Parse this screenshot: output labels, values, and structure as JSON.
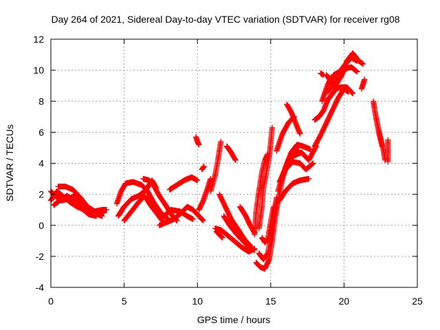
{
  "chart_data": {
    "type": "scatter",
    "title": "Day 264 of 2021, Sidereal Day-to-day VTEC variation (SDTVAR) for receiver rg08",
    "xlabel": "GPS time / hours",
    "ylabel": "SDTVAR / TECUs",
    "xlim": [
      0,
      25
    ],
    "ylim": [
      -4,
      12
    ],
    "xticks": [
      "0",
      "5",
      "10",
      "15",
      "20",
      "25"
    ],
    "yticks": [
      "-4",
      "-2",
      "0",
      "2",
      "4",
      "6",
      "8",
      "10",
      "12"
    ],
    "grid": true,
    "marker": "+",
    "color": "#ff0000",
    "tracks": [
      [
        [
          0.0,
          2.2
        ],
        [
          0.3,
          1.9
        ],
        [
          0.7,
          1.6
        ],
        [
          1.2,
          1.7
        ],
        [
          1.6,
          1.9
        ],
        [
          2.0,
          1.4
        ],
        [
          2.5,
          0.9
        ],
        [
          3.0,
          0.7
        ],
        [
          3.6,
          0.8
        ]
      ],
      [
        [
          0.0,
          1.6
        ],
        [
          0.4,
          2.2
        ],
        [
          0.8,
          1.9
        ],
        [
          1.3,
          1.5
        ],
        [
          1.8,
          1.2
        ],
        [
          2.3,
          1.0
        ],
        [
          2.9,
          0.8
        ],
        [
          3.5,
          0.6
        ]
      ],
      [
        [
          0.5,
          2.5
        ],
        [
          1.0,
          2.5
        ],
        [
          1.5,
          2.3
        ],
        [
          2.0,
          1.8
        ],
        [
          2.5,
          1.2
        ],
        [
          3.0,
          0.9
        ],
        [
          3.5,
          1.0
        ],
        [
          3.8,
          1.0
        ]
      ],
      [
        [
          0.2,
          1.3
        ],
        [
          0.6,
          1.6
        ],
        [
          1.1,
          1.9
        ],
        [
          1.6,
          1.6
        ],
        [
          2.1,
          1.1
        ],
        [
          2.6,
          0.7
        ],
        [
          3.1,
          0.6
        ]
      ],
      [
        [
          4.5,
          1.4
        ],
        [
          4.8,
          2.2
        ],
        [
          5.1,
          2.7
        ],
        [
          5.6,
          2.8
        ],
        [
          6.2,
          2.6
        ],
        [
          6.6,
          2.2
        ],
        [
          7.0,
          1.5
        ],
        [
          7.5,
          0.8
        ],
        [
          8.0,
          0.4
        ]
      ],
      [
        [
          4.6,
          0.6
        ],
        [
          5.0,
          1.2
        ],
        [
          5.5,
          1.7
        ],
        [
          6.0,
          1.9
        ],
        [
          6.5,
          2.3
        ],
        [
          6.9,
          2.9
        ],
        [
          7.2,
          2.4
        ]
      ],
      [
        [
          5.0,
          0.3
        ],
        [
          5.5,
          0.9
        ],
        [
          6.0,
          1.5
        ],
        [
          6.4,
          1.9
        ],
        [
          6.8,
          1.3
        ],
        [
          7.2,
          0.8
        ],
        [
          7.6,
          0.3
        ]
      ],
      [
        [
          6.3,
          3.0
        ],
        [
          6.7,
          2.9
        ],
        [
          7.0,
          2.6
        ],
        [
          7.4,
          1.9
        ],
        [
          7.9,
          1.2
        ],
        [
          8.3,
          0.6
        ],
        [
          8.6,
          0.3
        ]
      ],
      [
        [
          7.4,
          0.0
        ],
        [
          7.9,
          0.2
        ],
        [
          8.4,
          0.4
        ],
        [
          8.9,
          0.8
        ],
        [
          9.3,
          1.2
        ],
        [
          9.7,
          1.0
        ],
        [
          10.1,
          0.6
        ],
        [
          10.4,
          0.3
        ]
      ],
      [
        [
          7.6,
          0.5
        ],
        [
          8.2,
          1.0
        ],
        [
          8.8,
          0.9
        ],
        [
          9.3,
          0.6
        ],
        [
          9.7,
          0.4
        ]
      ],
      [
        [
          8.1,
          2.3
        ],
        [
          8.6,
          2.6
        ],
        [
          9.1,
          2.9
        ],
        [
          9.6,
          3.1
        ],
        [
          10.0,
          2.9
        ]
      ],
      [
        [
          9.9,
          5.7
        ],
        [
          10.0,
          5.4
        ],
        [
          10.1,
          5.2
        ]
      ],
      [
        [
          10.3,
          3.6
        ],
        [
          10.45,
          3.8
        ]
      ],
      [
        [
          10.1,
          1.0
        ],
        [
          10.4,
          1.6
        ],
        [
          10.7,
          2.4
        ],
        [
          10.9,
          3.0
        ]
      ],
      [
        [
          10.9,
          2.2
        ],
        [
          11.2,
          3.2
        ],
        [
          11.4,
          4.2
        ],
        [
          11.6,
          5.4
        ]
      ],
      [
        [
          12.0,
          5.1
        ],
        [
          12.3,
          4.7
        ],
        [
          12.6,
          4.2
        ]
      ],
      [
        [
          11.2,
          -0.2
        ],
        [
          11.6,
          -0.3
        ],
        [
          12.0,
          -0.6
        ],
        [
          12.5,
          -1.0
        ],
        [
          13.0,
          -1.4
        ],
        [
          13.5,
          -1.7
        ],
        [
          13.9,
          -1.5
        ]
      ],
      [
        [
          11.5,
          2.0
        ],
        [
          11.9,
          1.2
        ],
        [
          12.3,
          0.4
        ],
        [
          12.8,
          -0.3
        ],
        [
          13.2,
          -0.9
        ],
        [
          13.6,
          -1.3
        ]
      ],
      [
        [
          11.8,
          0.6
        ],
        [
          12.2,
          0.0
        ],
        [
          12.7,
          -0.6
        ],
        [
          13.1,
          -1.0
        ],
        [
          13.5,
          -1.4
        ],
        [
          13.9,
          -1.6
        ]
      ],
      [
        [
          11.3,
          -0.4
        ],
        [
          11.5,
          -0.6
        ],
        [
          11.7,
          -0.8
        ]
      ],
      [
        [
          12.9,
          1.2
        ],
        [
          13.3,
          0.6
        ],
        [
          13.6,
          0.0
        ],
        [
          13.9,
          -0.5
        ]
      ],
      [
        [
          13.9,
          -0.6
        ],
        [
          14.0,
          0.8
        ],
        [
          14.2,
          2.2
        ],
        [
          14.4,
          3.4
        ],
        [
          14.6,
          4.2
        ],
        [
          14.8,
          4.6
        ]
      ],
      [
        [
          14.2,
          -0.2
        ],
        [
          14.4,
          1.2
        ],
        [
          14.5,
          2.4
        ],
        [
          14.7,
          3.4
        ],
        [
          14.9,
          4.4
        ],
        [
          15.0,
          5.3
        ],
        [
          15.1,
          6.3
        ]
      ],
      [
        [
          14.0,
          -2.4
        ],
        [
          14.3,
          -2.7
        ],
        [
          14.6,
          -2.8
        ],
        [
          14.9,
          -2.2
        ],
        [
          15.1,
          -1.0
        ],
        [
          15.3,
          0.4
        ],
        [
          15.5,
          1.6
        ]
      ],
      [
        [
          14.2,
          -1.8
        ],
        [
          14.5,
          -2.2
        ],
        [
          14.8,
          -1.8
        ],
        [
          15.0,
          -0.8
        ],
        [
          15.2,
          0.6
        ],
        [
          15.4,
          1.8
        ]
      ],
      [
        [
          14.4,
          -0.8
        ],
        [
          14.6,
          -1.1
        ],
        [
          14.8,
          -0.9
        ],
        [
          15.0,
          0.2
        ],
        [
          15.2,
          1.2
        ]
      ],
      [
        [
          15.3,
          0.8
        ],
        [
          15.6,
          2.0
        ],
        [
          15.8,
          3.0
        ],
        [
          16.2,
          4.2
        ],
        [
          16.6,
          4.9
        ],
        [
          16.9,
          4.8
        ]
      ],
      [
        [
          15.5,
          2.2
        ],
        [
          15.8,
          3.2
        ],
        [
          16.2,
          4.2
        ],
        [
          16.6,
          4.5
        ],
        [
          17.1,
          4.7
        ],
        [
          17.6,
          4.2
        ],
        [
          18.1,
          5.1
        ]
      ],
      [
        [
          15.6,
          1.6
        ],
        [
          16.0,
          2.2
        ],
        [
          16.5,
          2.7
        ],
        [
          17.0,
          2.9
        ],
        [
          17.6,
          3.0
        ]
      ],
      [
        [
          15.6,
          2.8
        ],
        [
          16.0,
          3.6
        ],
        [
          16.5,
          4.1
        ],
        [
          17.0,
          4.0
        ],
        [
          17.4,
          3.6
        ],
        [
          17.9,
          4.0
        ]
      ],
      [
        [
          15.4,
          4.8
        ],
        [
          15.8,
          5.9
        ],
        [
          16.2,
          6.6
        ],
        [
          16.6,
          7.0
        ]
      ],
      [
        [
          16.0,
          3.7
        ],
        [
          16.4,
          4.7
        ],
        [
          16.8,
          5.2
        ],
        [
          17.2,
          5.1
        ],
        [
          17.7,
          4.9
        ]
      ],
      [
        [
          16.1,
          7.8
        ],
        [
          16.4,
          7.3
        ],
        [
          16.7,
          6.6
        ],
        [
          17.0,
          5.9
        ]
      ],
      [
        [
          18.0,
          6.8
        ],
        [
          18.3,
          7.0
        ],
        [
          18.6,
          7.4
        ],
        [
          18.9,
          8.1
        ],
        [
          19.3,
          8.6
        ],
        [
          19.6,
          8.9
        ],
        [
          19.9,
          8.8
        ]
      ],
      [
        [
          18.0,
          5.1
        ],
        [
          18.4,
          5.8
        ],
        [
          18.8,
          6.6
        ],
        [
          19.2,
          7.4
        ],
        [
          19.6,
          8.2
        ],
        [
          20.0,
          8.8
        ],
        [
          20.3,
          8.6
        ]
      ],
      [
        [
          18.5,
          8.0
        ],
        [
          18.9,
          9.1
        ],
        [
          19.3,
          9.7
        ],
        [
          19.7,
          9.9
        ],
        [
          20.1,
          10.4
        ],
        [
          20.5,
          10.8
        ],
        [
          20.9,
          10.6
        ]
      ],
      [
        [
          18.9,
          8.6
        ],
        [
          19.3,
          9.1
        ],
        [
          19.7,
          9.5
        ],
        [
          20.1,
          10.1
        ],
        [
          20.5,
          10.2
        ],
        [
          20.9,
          9.9
        ]
      ],
      [
        [
          19.4,
          9.0
        ],
        [
          19.8,
          9.6
        ],
        [
          20.2,
          10.6
        ],
        [
          20.6,
          11.1
        ],
        [
          21.0,
          10.6
        ],
        [
          21.3,
          10.4
        ]
      ],
      [
        [
          19.0,
          9.3
        ],
        [
          19.4,
          8.8
        ],
        [
          19.8,
          8.9
        ],
        [
          20.2,
          8.9
        ],
        [
          20.6,
          8.5
        ]
      ],
      [
        [
          18.8,
          9.7
        ],
        [
          19.1,
          9.3
        ],
        [
          19.4,
          9.6
        ]
      ],
      [
        [
          18.4,
          9.8
        ],
        [
          18.6,
          9.7
        ]
      ],
      [
        [
          21.2,
          8.8
        ],
        [
          21.4,
          9.4
        ]
      ],
      [
        [
          22.0,
          8.0
        ],
        [
          22.1,
          7.4
        ],
        [
          22.3,
          6.4
        ],
        [
          22.5,
          5.6
        ],
        [
          22.7,
          4.8
        ],
        [
          22.8,
          4.2
        ]
      ],
      [
        [
          22.2,
          6.9
        ],
        [
          22.4,
          5.9
        ],
        [
          22.6,
          5.1
        ]
      ],
      [
        [
          23.0,
          5.5
        ],
        [
          23.0,
          4.5
        ],
        [
          23.0,
          4.1
        ]
      ]
    ]
  }
}
